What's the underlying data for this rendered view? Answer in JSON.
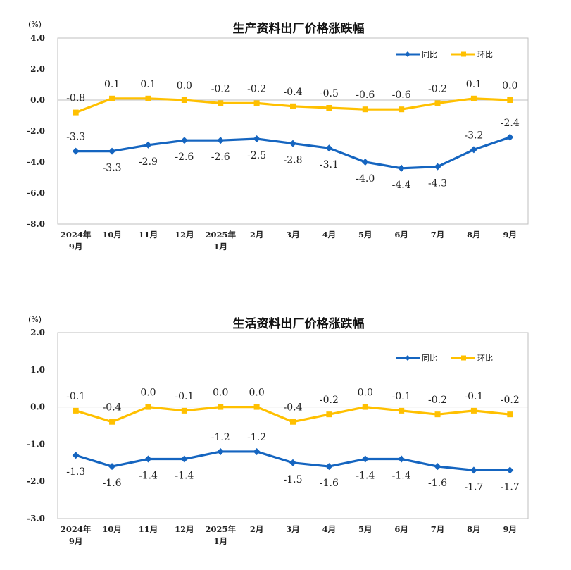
{
  "colors": {
    "yoy": "#1565c0",
    "mom": "#ffc000"
  },
  "chart_data": [
    {
      "type": "line",
      "title": "生产资料出厂价格涨跌幅",
      "ylabel": "(%)",
      "ylim": [
        -8.0,
        4.0
      ],
      "yticks": [
        "4.0",
        "2.0",
        "0.0",
        "-2.0",
        "-4.0",
        "-6.0",
        "-8.0"
      ],
      "ytick_values": [
        4,
        2,
        0,
        -2,
        -4,
        -6,
        -8
      ],
      "categories": [
        [
          "2024年",
          "9月"
        ],
        [
          "10月"
        ],
        [
          "11月"
        ],
        [
          "12月"
        ],
        [
          "2025年",
          "1月"
        ],
        [
          "2月"
        ],
        [
          "3月"
        ],
        [
          "4月"
        ],
        [
          "5月"
        ],
        [
          "6月"
        ],
        [
          "7月"
        ],
        [
          "8月"
        ],
        [
          "9月"
        ]
      ],
      "legend_position": "top-right",
      "series": [
        {
          "name": "同比",
          "key": "yoy",
          "values": [
            -3.3,
            -3.3,
            -2.9,
            -2.6,
            -2.6,
            -2.5,
            -2.8,
            -3.1,
            -4.0,
            -4.4,
            -4.3,
            -3.2,
            -2.4
          ],
          "labels": [
            "-3.3",
            "-3.3",
            "-2.9",
            "-2.6",
            "-2.6",
            "-2.5",
            "-2.8",
            "-3.1",
            "-4.0",
            "-4.4",
            "-4.3",
            "-3.2",
            "-2.4"
          ]
        },
        {
          "name": "环比",
          "key": "mom",
          "values": [
            -0.8,
            0.1,
            0.1,
            0.0,
            -0.2,
            -0.2,
            -0.4,
            -0.5,
            -0.6,
            -0.6,
            -0.2,
            0.1,
            0.0
          ],
          "labels": [
            "-0.8",
            "0.1",
            "0.1",
            "0.0",
            "-0.2",
            "-0.2",
            "-0.4",
            "-0.5",
            "-0.6",
            "-0.6",
            "-0.2",
            "0.1",
            "0.0"
          ]
        }
      ]
    },
    {
      "type": "line",
      "title": "生活资料出厂价格涨跌幅",
      "ylabel": "(%)",
      "ylim": [
        -3.0,
        2.0
      ],
      "yticks": [
        "2.0",
        "1.0",
        "0.0",
        "-1.0",
        "-2.0",
        "-3.0"
      ],
      "ytick_values": [
        2,
        1,
        0,
        -1,
        -2,
        -3
      ],
      "categories": [
        [
          "2024年",
          "9月"
        ],
        [
          "10月"
        ],
        [
          "11月"
        ],
        [
          "12月"
        ],
        [
          "2025年",
          "1月"
        ],
        [
          "2月"
        ],
        [
          "3月"
        ],
        [
          "4月"
        ],
        [
          "5月"
        ],
        [
          "6月"
        ],
        [
          "7月"
        ],
        [
          "8月"
        ],
        [
          "9月"
        ]
      ],
      "legend_position": "top-right",
      "series": [
        {
          "name": "同比",
          "key": "yoy",
          "values": [
            -1.3,
            -1.6,
            -1.4,
            -1.4,
            -1.2,
            -1.2,
            -1.5,
            -1.6,
            -1.4,
            -1.4,
            -1.6,
            -1.7,
            -1.7
          ],
          "labels": [
            "-1.3",
            "-1.6",
            "-1.4",
            "-1.4",
            "-1.2",
            "-1.2",
            "-1.5",
            "-1.6",
            "-1.4",
            "-1.4",
            "-1.6",
            "-1.7",
            "-1.7"
          ]
        },
        {
          "name": "环比",
          "key": "mom",
          "values": [
            -0.1,
            -0.4,
            0.0,
            -0.1,
            0.0,
            0.0,
            -0.4,
            -0.2,
            0.0,
            -0.1,
            -0.2,
            -0.1,
            -0.2
          ],
          "labels": [
            "-0.1",
            "-0.4",
            "0.0",
            "-0.1",
            "0.0",
            "0.0",
            "-0.4",
            "-0.2",
            "0.0",
            "-0.1",
            "-0.2",
            "-0.1",
            "-0.2"
          ]
        }
      ]
    }
  ]
}
